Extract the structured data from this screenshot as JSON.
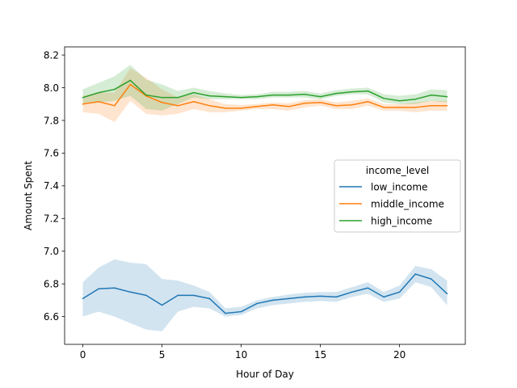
{
  "chart_data": {
    "type": "line",
    "title": "",
    "xlabel": "Hour of Day",
    "ylabel": "Amount Spent",
    "xlim": [
      -1.15,
      24.15
    ],
    "ylim": [
      6.43,
      8.25
    ],
    "xticks": [
      0,
      5,
      10,
      15,
      20
    ],
    "xtick_labels": [
      "0",
      "5",
      "10",
      "15",
      "20"
    ],
    "yticks": [
      6.6,
      6.8,
      7.0,
      7.2,
      7.4,
      7.6,
      7.8,
      8.0,
      8.2
    ],
    "ytick_labels": [
      "6.6",
      "6.8",
      "7.0",
      "7.2",
      "7.4",
      "7.6",
      "7.8",
      "8.0",
      "8.2"
    ],
    "grid": false,
    "legend": {
      "title": "income_level",
      "position": "center-right"
    },
    "x": [
      0,
      1,
      2,
      3,
      4,
      5,
      6,
      7,
      8,
      9,
      10,
      11,
      12,
      13,
      14,
      15,
      16,
      17,
      18,
      19,
      20,
      21,
      22,
      23
    ],
    "series": [
      {
        "name": "low_income",
        "color": "#1f77b4",
        "values": [
          6.71,
          6.77,
          6.775,
          6.75,
          6.73,
          6.67,
          6.73,
          6.73,
          6.71,
          6.62,
          6.63,
          6.68,
          6.7,
          6.71,
          6.72,
          6.725,
          6.72,
          6.75,
          6.775,
          6.72,
          6.75,
          6.86,
          6.83,
          6.74
        ],
        "ci_low": [
          6.6,
          6.63,
          6.6,
          6.56,
          6.52,
          6.51,
          6.63,
          6.66,
          6.65,
          6.6,
          6.61,
          6.65,
          6.67,
          6.68,
          6.69,
          6.695,
          6.69,
          6.72,
          6.74,
          6.69,
          6.71,
          6.81,
          6.78,
          6.67
        ],
        "ci_high": [
          6.81,
          6.9,
          6.95,
          6.93,
          6.92,
          6.83,
          6.82,
          6.79,
          6.75,
          6.65,
          6.66,
          6.7,
          6.72,
          6.735,
          6.745,
          6.75,
          6.75,
          6.78,
          6.81,
          6.75,
          6.79,
          6.91,
          6.89,
          6.82
        ]
      },
      {
        "name": "middle_income",
        "color": "#ff7f0e",
        "values": [
          7.9,
          7.915,
          7.89,
          8.02,
          7.95,
          7.91,
          7.89,
          7.915,
          7.89,
          7.875,
          7.875,
          7.885,
          7.895,
          7.885,
          7.905,
          7.91,
          7.89,
          7.895,
          7.915,
          7.88,
          7.88,
          7.88,
          7.89,
          7.89
        ],
        "ci_low": [
          7.85,
          7.84,
          7.79,
          7.92,
          7.84,
          7.83,
          7.84,
          7.87,
          7.85,
          7.85,
          7.86,
          7.87,
          7.87,
          7.86,
          7.88,
          7.89,
          7.87,
          7.87,
          7.89,
          7.86,
          7.86,
          7.85,
          7.86,
          7.86
        ],
        "ci_high": [
          7.95,
          7.97,
          7.97,
          8.12,
          8.06,
          7.99,
          7.94,
          7.96,
          7.93,
          7.9,
          7.895,
          7.9,
          7.91,
          7.905,
          7.925,
          7.93,
          7.91,
          7.92,
          7.935,
          7.9,
          7.9,
          7.91,
          7.92,
          7.92
        ]
      },
      {
        "name": "high_income",
        "color": "#2ca02c",
        "values": [
          7.94,
          7.97,
          7.99,
          8.045,
          7.955,
          7.94,
          7.94,
          7.97,
          7.95,
          7.945,
          7.94,
          7.945,
          7.955,
          7.955,
          7.96,
          7.945,
          7.965,
          7.975,
          7.98,
          7.935,
          7.92,
          7.93,
          7.955,
          7.945
        ],
        "ci_low": [
          7.9,
          7.91,
          7.92,
          7.95,
          7.87,
          7.86,
          7.9,
          7.94,
          7.93,
          7.93,
          7.93,
          7.93,
          7.94,
          7.94,
          7.94,
          7.93,
          7.95,
          7.96,
          7.96,
          7.91,
          7.9,
          7.9,
          7.92,
          7.91
        ],
        "ci_high": [
          7.99,
          8.03,
          8.07,
          8.14,
          8.05,
          8.02,
          7.98,
          8.0,
          7.98,
          7.965,
          7.955,
          7.96,
          7.975,
          7.975,
          7.98,
          7.965,
          7.985,
          7.995,
          8.0,
          7.96,
          7.95,
          7.96,
          7.99,
          7.985
        ]
      }
    ]
  }
}
